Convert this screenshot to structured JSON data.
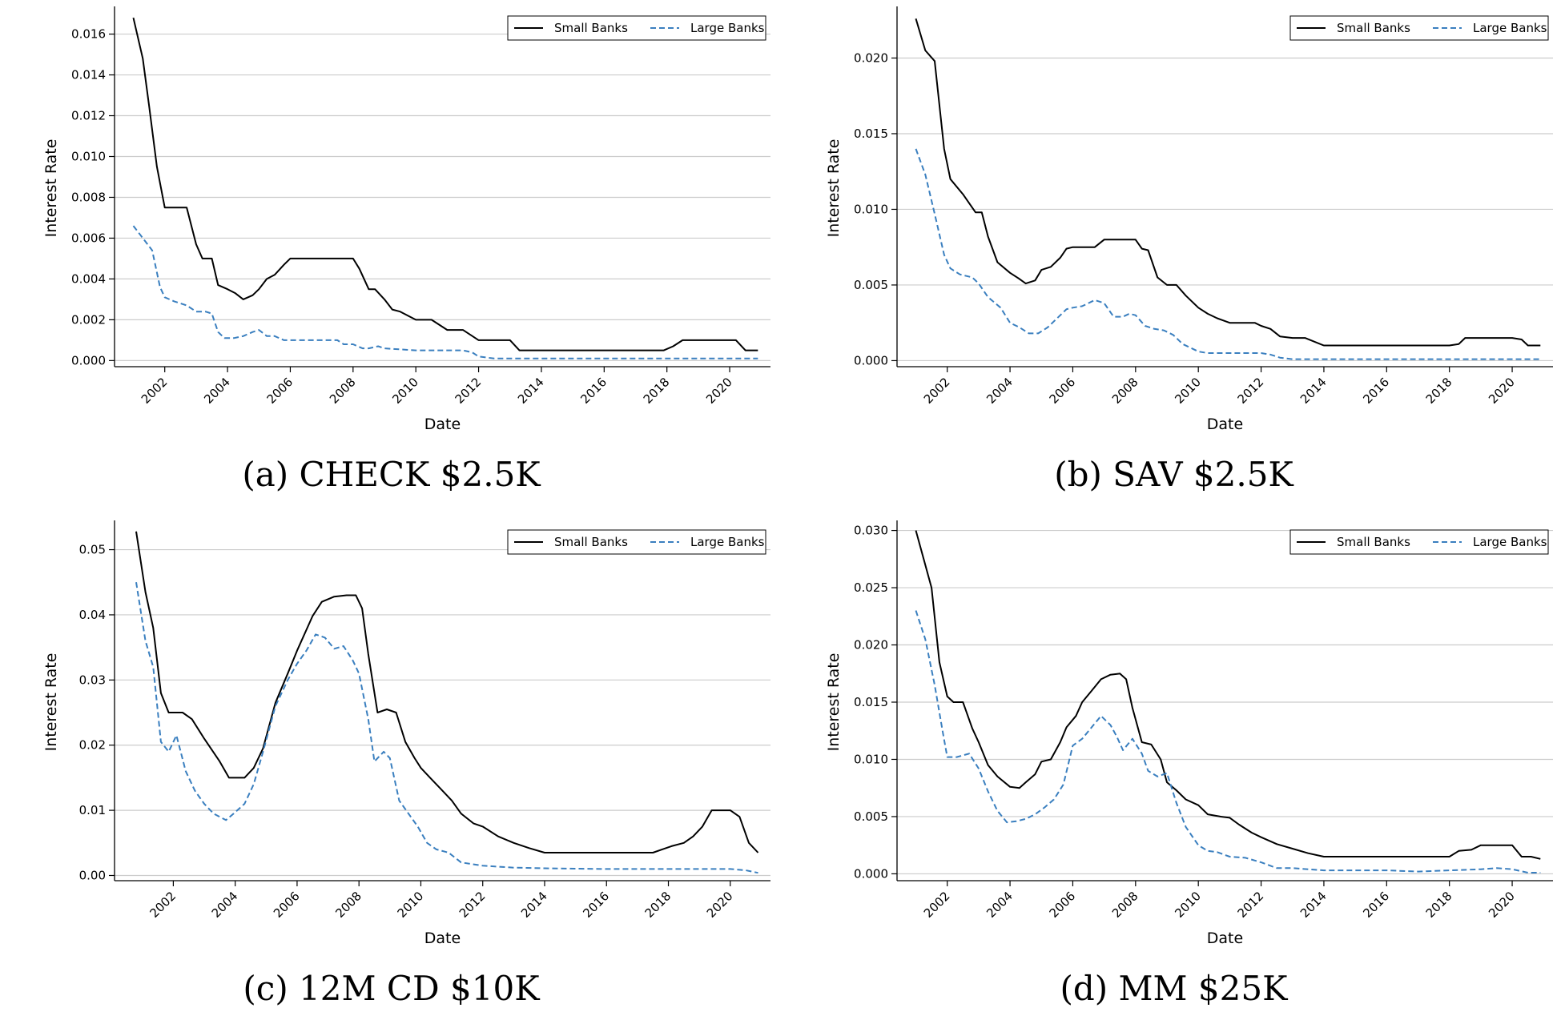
{
  "chart_data": [
    {
      "type": "line",
      "caption": "(a) CHECK $2.5K",
      "xlabel": "Date",
      "ylabel": "Interest Rate",
      "xlim": [
        2000.4,
        2021.3
      ],
      "ylim": [
        -0.0003,
        0.0172
      ],
      "xticks": [
        "2002",
        "2004",
        "2006",
        "2008",
        "2010",
        "2012",
        "2014",
        "2016",
        "2018",
        "2020"
      ],
      "yticks": [
        "0.000",
        "0.002",
        "0.004",
        "0.006",
        "0.008",
        "0.010",
        "0.012",
        "0.014",
        "0.016"
      ],
      "grid": "horizontal",
      "legend_position": "top-right",
      "series": [
        {
          "name": "Small Banks",
          "style": "solid",
          "color": "#000000",
          "x": [
            2001.0,
            2001.3,
            2001.5,
            2001.75,
            2002.0,
            2002.25,
            2002.7,
            2003.0,
            2003.2,
            2003.5,
            2003.7,
            2004.0,
            2004.25,
            2004.5,
            2004.8,
            2005.0,
            2005.25,
            2005.5,
            2005.8,
            2006.0,
            2006.5,
            2007.0,
            2007.5,
            2007.8,
            2008.0,
            2008.2,
            2008.5,
            2008.7,
            2009.0,
            2009.25,
            2009.5,
            2010.0,
            2010.3,
            2010.5,
            2011.0,
            2011.25,
            2011.5,
            2012.0,
            2012.5,
            2012.8,
            2013.0,
            2013.3,
            2014.0,
            2016.0,
            2017.0,
            2017.5,
            2017.9,
            2018.2,
            2018.5,
            2018.8,
            2019.0,
            2019.5,
            2020.0,
            2020.2,
            2020.5,
            2020.9
          ],
          "y": [
            0.0168,
            0.0148,
            0.0125,
            0.0095,
            0.0075,
            0.0075,
            0.0075,
            0.0057,
            0.005,
            0.005,
            0.0037,
            0.0035,
            0.0033,
            0.003,
            0.0032,
            0.0035,
            0.004,
            0.0042,
            0.0047,
            0.005,
            0.005,
            0.005,
            0.005,
            0.005,
            0.005,
            0.0045,
            0.0035,
            0.0035,
            0.003,
            0.0025,
            0.0024,
            0.002,
            0.002,
            0.002,
            0.0015,
            0.0015,
            0.0015,
            0.001,
            0.001,
            0.001,
            0.001,
            0.0005,
            0.0005,
            0.0005,
            0.0005,
            0.0005,
            0.0005,
            0.0007,
            0.001,
            0.001,
            0.001,
            0.001,
            0.001,
            0.001,
            0.0005,
            0.0005
          ]
        },
        {
          "name": "Large Banks",
          "style": "dashed",
          "color": "#3a7fbf",
          "x": [
            2001.0,
            2001.3,
            2001.6,
            2001.85,
            2002.0,
            2002.3,
            2002.7,
            2003.0,
            2003.3,
            2003.5,
            2003.7,
            2003.9,
            2004.2,
            2004.5,
            2004.8,
            2005.0,
            2005.25,
            2005.5,
            2005.8,
            2006.0,
            2006.5,
            2007.0,
            2007.5,
            2007.7,
            2008.0,
            2008.3,
            2008.5,
            2008.8,
            2009.0,
            2010.0,
            2011.0,
            2011.5,
            2011.8,
            2012.0,
            2012.5,
            2014.0,
            2016.0,
            2018.0,
            2020.0,
            2020.9
          ],
          "y": [
            0.0066,
            0.006,
            0.0054,
            0.0036,
            0.0031,
            0.0029,
            0.0027,
            0.0024,
            0.0024,
            0.0023,
            0.0014,
            0.0011,
            0.0011,
            0.0012,
            0.0014,
            0.0015,
            0.0012,
            0.0012,
            0.001,
            0.001,
            0.001,
            0.001,
            0.001,
            0.0008,
            0.0008,
            0.0006,
            0.0006,
            0.0007,
            0.0006,
            0.0005,
            0.0005,
            0.0005,
            0.0004,
            0.0002,
            0.0001,
            0.0001,
            0.0001,
            0.0001,
            0.0001,
            0.0001
          ]
        }
      ]
    },
    {
      "type": "line",
      "caption": "(b) SAV $2.5K",
      "xlabel": "Date",
      "ylabel": "Interest Rate",
      "xlim": [
        2000.4,
        2021.3
      ],
      "ylim": [
        -0.0004,
        0.0232
      ],
      "xticks": [
        "2002",
        "2004",
        "2006",
        "2008",
        "2010",
        "2012",
        "2014",
        "2016",
        "2018",
        "2020"
      ],
      "yticks": [
        "0.000",
        "0.005",
        "0.010",
        "0.015",
        "0.020"
      ],
      "grid": "horizontal",
      "legend_position": "top-right",
      "series": [
        {
          "name": "Small Banks",
          "style": "solid",
          "color": "#000000",
          "x": [
            2001.0,
            2001.3,
            2001.6,
            2001.9,
            2002.1,
            2002.5,
            2002.9,
            2003.1,
            2003.3,
            2003.6,
            2004.0,
            2004.3,
            2004.5,
            2004.8,
            2005.0,
            2005.3,
            2005.6,
            2005.8,
            2006.0,
            2006.5,
            2006.7,
            2007.0,
            2007.5,
            2007.7,
            2008.0,
            2008.2,
            2008.4,
            2008.7,
            2009.0,
            2009.3,
            2009.6,
            2010.0,
            2010.3,
            2010.6,
            2011.0,
            2011.5,
            2011.8,
            2012.0,
            2012.3,
            2012.6,
            2013.0,
            2013.4,
            2014.0,
            2016.0,
            2018.0,
            2018.3,
            2018.5,
            2019.0,
            2020.0,
            2020.3,
            2020.5,
            2020.9
          ],
          "y": [
            0.0226,
            0.0205,
            0.0198,
            0.014,
            0.012,
            0.011,
            0.0098,
            0.0098,
            0.0082,
            0.0065,
            0.0058,
            0.0054,
            0.0051,
            0.0053,
            0.006,
            0.0062,
            0.0068,
            0.0074,
            0.0075,
            0.0075,
            0.0075,
            0.008,
            0.008,
            0.008,
            0.008,
            0.0074,
            0.0073,
            0.0055,
            0.005,
            0.005,
            0.0043,
            0.0035,
            0.0031,
            0.0028,
            0.0025,
            0.0025,
            0.0025,
            0.0023,
            0.0021,
            0.0016,
            0.0015,
            0.0015,
            0.001,
            0.001,
            0.001,
            0.0011,
            0.0015,
            0.0015,
            0.0015,
            0.0014,
            0.001,
            0.001
          ]
        },
        {
          "name": "Large Banks",
          "style": "dashed",
          "color": "#3a7fbf",
          "x": [
            2001.0,
            2001.3,
            2001.6,
            2001.9,
            2002.1,
            2002.4,
            2002.8,
            2003.0,
            2003.3,
            2003.7,
            2004.0,
            2004.3,
            2004.6,
            2004.9,
            2005.2,
            2005.5,
            2005.8,
            2006.0,
            2006.3,
            2006.5,
            2006.7,
            2007.0,
            2007.3,
            2007.6,
            2007.8,
            2008.0,
            2008.3,
            2008.6,
            2008.9,
            2009.2,
            2009.5,
            2009.8,
            2010.0,
            2010.3,
            2010.6,
            2011.0,
            2011.5,
            2012.0,
            2012.3,
            2012.6,
            2013.0,
            2014.0,
            2016.0,
            2018.0,
            2020.0,
            2020.9
          ],
          "y": [
            0.014,
            0.0123,
            0.0097,
            0.007,
            0.0061,
            0.0057,
            0.0055,
            0.0051,
            0.0042,
            0.0035,
            0.0025,
            0.0022,
            0.0018,
            0.0018,
            0.0022,
            0.0028,
            0.0034,
            0.0035,
            0.0036,
            0.0038,
            0.004,
            0.0038,
            0.0029,
            0.0029,
            0.0031,
            0.003,
            0.0023,
            0.0021,
            0.002,
            0.0017,
            0.0011,
            0.0008,
            0.0006,
            0.0005,
            0.0005,
            0.0005,
            0.0005,
            0.0005,
            0.0004,
            0.0002,
            0.0001,
            0.0001,
            0.0001,
            0.0001,
            0.0001,
            0.0001
          ]
        }
      ]
    },
    {
      "type": "line",
      "caption": "(c) 12M CD $10K",
      "xlabel": "Date",
      "ylabel": "Interest Rate",
      "xlim": [
        2000.1,
        2021.3
      ],
      "ylim": [
        -0.0008,
        0.054
      ],
      "xticks": [
        "2002",
        "2004",
        "2006",
        "2008",
        "2010",
        "2012",
        "2014",
        "2016",
        "2018",
        "2020"
      ],
      "yticks": [
        "0.00",
        "0.01",
        "0.02",
        "0.03",
        "0.04",
        "0.05"
      ],
      "grid": "horizontal",
      "legend_position": "top-right",
      "series": [
        {
          "name": "Small Banks",
          "style": "solid",
          "color": "#000000",
          "x": [
            2000.8,
            2001.1,
            2001.35,
            2001.6,
            2001.85,
            2002.3,
            2002.6,
            2003.0,
            2003.5,
            2003.8,
            2004.0,
            2004.3,
            2004.6,
            2004.9,
            2005.3,
            2005.7,
            2006.0,
            2006.5,
            2006.8,
            2007.2,
            2007.6,
            2007.9,
            2008.1,
            2008.3,
            2008.6,
            2008.9,
            2009.2,
            2009.5,
            2009.8,
            2010.0,
            2010.3,
            2010.6,
            2011.0,
            2011.3,
            2011.7,
            2012.0,
            2012.5,
            2013.0,
            2013.5,
            2014.0,
            2015.0,
            2016.0,
            2017.0,
            2017.5,
            2017.8,
            2018.1,
            2018.5,
            2018.8,
            2019.1,
            2019.4,
            2019.7,
            2020.0,
            2020.3,
            2020.6,
            2020.9
          ],
          "y": [
            0.0528,
            0.0435,
            0.038,
            0.028,
            0.025,
            0.025,
            0.024,
            0.021,
            0.0175,
            0.015,
            0.015,
            0.015,
            0.0165,
            0.0195,
            0.0265,
            0.031,
            0.0345,
            0.0398,
            0.042,
            0.0428,
            0.043,
            0.043,
            0.041,
            0.034,
            0.025,
            0.0255,
            0.025,
            0.0205,
            0.018,
            0.0165,
            0.015,
            0.0135,
            0.0115,
            0.0095,
            0.008,
            0.0075,
            0.006,
            0.005,
            0.0042,
            0.0035,
            0.0035,
            0.0035,
            0.0035,
            0.0035,
            0.004,
            0.0045,
            0.005,
            0.006,
            0.0075,
            0.01,
            0.01,
            0.01,
            0.009,
            0.005,
            0.0035
          ]
        },
        {
          "name": "Large Banks",
          "style": "dashed",
          "color": "#3a7fbf",
          "x": [
            2000.8,
            2001.1,
            2001.35,
            2001.6,
            2001.85,
            2002.1,
            2002.4,
            2002.7,
            2003.0,
            2003.3,
            2003.7,
            2003.95,
            2004.3,
            2004.6,
            2004.9,
            2005.3,
            2005.7,
            2006.0,
            2006.3,
            2006.6,
            2006.9,
            2007.2,
            2007.5,
            2007.8,
            2008.0,
            2008.3,
            2008.5,
            2008.8,
            2009.0,
            2009.3,
            2009.6,
            2009.9,
            2010.2,
            2010.5,
            2010.9,
            2011.3,
            2012.0,
            2013.0,
            2014.0,
            2016.0,
            2018.0,
            2020.0,
            2020.5,
            2020.9
          ],
          "y": [
            0.045,
            0.036,
            0.032,
            0.0205,
            0.019,
            0.0215,
            0.016,
            0.013,
            0.011,
            0.0095,
            0.0085,
            0.0095,
            0.011,
            0.014,
            0.019,
            0.026,
            0.03,
            0.0325,
            0.0345,
            0.037,
            0.0365,
            0.0348,
            0.0352,
            0.033,
            0.031,
            0.024,
            0.0175,
            0.019,
            0.018,
            0.0115,
            0.0095,
            0.0075,
            0.005,
            0.004,
            0.0035,
            0.002,
            0.0015,
            0.0012,
            0.0011,
            0.001,
            0.001,
            0.001,
            0.0008,
            0.0004
          ]
        }
      ]
    },
    {
      "type": "line",
      "caption": "(d) MM $25K",
      "xlabel": "Date",
      "ylabel": "Interest Rate",
      "xlim": [
        2000.4,
        2021.3
      ],
      "ylim": [
        -0.0006,
        0.0306
      ],
      "xticks": [
        "2002",
        "2004",
        "2006",
        "2008",
        "2010",
        "2012",
        "2014",
        "2016",
        "2018",
        "2020"
      ],
      "yticks": [
        "0.000",
        "0.005",
        "0.010",
        "0.015",
        "0.020",
        "0.025",
        "0.030"
      ],
      "grid": "horizontal",
      "legend_position": "top-right",
      "series": [
        {
          "name": "Small Banks",
          "style": "solid",
          "color": "#000000",
          "x": [
            2001.0,
            2001.25,
            2001.5,
            2001.75,
            2002.0,
            2002.2,
            2002.5,
            2002.8,
            2003.0,
            2003.3,
            2003.6,
            2004.0,
            2004.3,
            2004.5,
            2004.8,
            2005.0,
            2005.3,
            2005.6,
            2005.8,
            2006.1,
            2006.3,
            2006.6,
            2006.9,
            2007.2,
            2007.5,
            2007.7,
            2007.9,
            2008.2,
            2008.5,
            2008.8,
            2009.0,
            2009.3,
            2009.6,
            2010.0,
            2010.3,
            2010.7,
            2011.0,
            2011.3,
            2011.7,
            2012.0,
            2012.5,
            2013.0,
            2013.5,
            2014.0,
            2016.0,
            2018.0,
            2018.3,
            2018.7,
            2019.0,
            2019.5,
            2020.0,
            2020.3,
            2020.6,
            2020.9
          ],
          "y": [
            0.03,
            0.0275,
            0.025,
            0.0185,
            0.0155,
            0.015,
            0.015,
            0.0127,
            0.0115,
            0.0095,
            0.0085,
            0.0076,
            0.0075,
            0.008,
            0.0087,
            0.0098,
            0.01,
            0.0115,
            0.0128,
            0.0138,
            0.015,
            0.016,
            0.017,
            0.0174,
            0.0175,
            0.017,
            0.0145,
            0.0115,
            0.0113,
            0.01,
            0.008,
            0.0073,
            0.0065,
            0.006,
            0.0052,
            0.005,
            0.0049,
            0.0043,
            0.0036,
            0.0032,
            0.0026,
            0.0022,
            0.0018,
            0.0015,
            0.0015,
            0.0015,
            0.002,
            0.0021,
            0.0025,
            0.0025,
            0.0025,
            0.0015,
            0.0015,
            0.0013
          ]
        },
        {
          "name": "Large Banks",
          "style": "dashed",
          "color": "#3a7fbf",
          "x": [
            2001.0,
            2001.3,
            2001.6,
            2001.85,
            2002.0,
            2002.3,
            2002.7,
            2003.0,
            2003.3,
            2003.6,
            2003.9,
            2004.2,
            2004.5,
            2004.8,
            2005.1,
            2005.4,
            2005.7,
            2006.0,
            2006.3,
            2006.6,
            2006.9,
            2007.2,
            2007.4,
            2007.6,
            2007.9,
            2008.2,
            2008.4,
            2008.7,
            2009.0,
            2009.3,
            2009.6,
            2010.0,
            2010.3,
            2010.6,
            2011.0,
            2011.5,
            2012.0,
            2012.5,
            2013.0,
            2014.0,
            2016.0,
            2017.0,
            2018.0,
            2019.0,
            2019.5,
            2020.0,
            2020.5,
            2020.9
          ],
          "y": [
            0.023,
            0.0205,
            0.0165,
            0.0125,
            0.0102,
            0.0102,
            0.0105,
            0.0092,
            0.0072,
            0.0055,
            0.0045,
            0.0046,
            0.0048,
            0.0052,
            0.0058,
            0.0065,
            0.0078,
            0.0112,
            0.0118,
            0.0128,
            0.0138,
            0.013,
            0.012,
            0.0108,
            0.0118,
            0.0105,
            0.009,
            0.0085,
            0.0088,
            0.0062,
            0.0041,
            0.0025,
            0.002,
            0.0019,
            0.0015,
            0.0014,
            0.001,
            0.0005,
            0.0005,
            0.0003,
            0.0003,
            0.0002,
            0.0003,
            0.0004,
            0.0005,
            0.0004,
            0.0001,
            0.0001
          ]
        }
      ]
    }
  ]
}
